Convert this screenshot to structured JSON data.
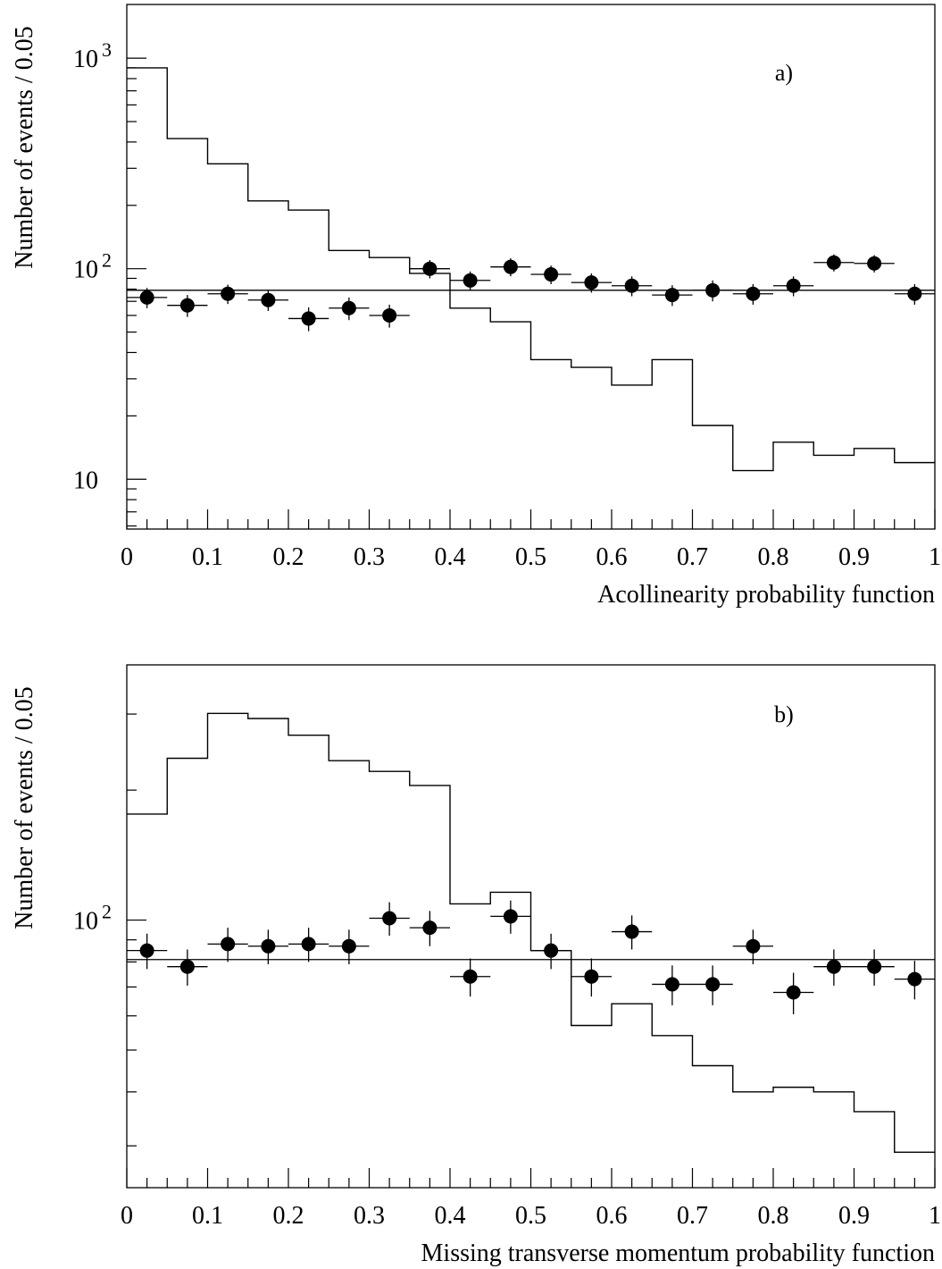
{
  "chart_data": [
    {
      "type": "histogram+scatter",
      "panel_label": "a)",
      "xlabel": "Acollinearity probability function",
      "ylabel": "Number of events / 0.05",
      "xlim": [
        0,
        1
      ],
      "ylim": [
        5.8,
        1800
      ],
      "yscale": "log",
      "x_tick_labels": [
        "0",
        "0.1",
        "0.2",
        "0.3",
        "0.4",
        "0.5",
        "0.6",
        "0.7",
        "0.8",
        "0.9",
        "1"
      ],
      "y_tick_labels": [
        {
          "value": 10,
          "base": "10",
          "exp": ""
        },
        {
          "value": 100,
          "base": "10",
          "exp": "2"
        },
        {
          "value": 1000,
          "base": "10",
          "exp": "3"
        }
      ],
      "bin_edges": [
        0,
        0.05,
        0.1,
        0.15,
        0.2,
        0.25,
        0.3,
        0.35,
        0.4,
        0.45,
        0.5,
        0.55,
        0.6,
        0.65,
        0.7,
        0.75,
        0.8,
        0.85,
        0.9,
        0.95,
        1.0
      ],
      "histogram": [
        900,
        415,
        315,
        210,
        190,
        122,
        113,
        95,
        65,
        56,
        37,
        34,
        28,
        37,
        18,
        11,
        15,
        13,
        14,
        12
      ],
      "points_x": [
        0.025,
        0.075,
        0.125,
        0.175,
        0.225,
        0.275,
        0.325,
        0.375,
        0.425,
        0.475,
        0.525,
        0.575,
        0.625,
        0.675,
        0.725,
        0.775,
        0.825,
        0.875,
        0.925,
        0.975
      ],
      "points_y": [
        73,
        67,
        76,
        71,
        58,
        65,
        60,
        100,
        88,
        102,
        94,
        86,
        83,
        75,
        79,
        76,
        83,
        107,
        106,
        76
      ],
      "points_err": [
        8,
        8,
        8,
        8,
        7.5,
        8,
        7.5,
        10,
        9,
        10,
        9.5,
        9,
        9,
        8.5,
        9,
        8.5,
        9,
        10,
        10,
        8.5
      ],
      "fit_line_y": 79
    },
    {
      "type": "histogram+scatter",
      "panel_label": "b)",
      "xlabel": "Missing transverse momentum probability function",
      "ylabel": "Number of events / 0.05",
      "xlim": [
        0,
        1
      ],
      "ylim": [
        24,
        390
      ],
      "yscale": "log",
      "x_tick_labels": [
        "0",
        "0.1",
        "0.2",
        "0.3",
        "0.4",
        "0.5",
        "0.6",
        "0.7",
        "0.8",
        "0.9",
        "1"
      ],
      "y_tick_labels": [
        {
          "value": 100,
          "base": "10",
          "exp": "2"
        }
      ],
      "bin_edges": [
        0,
        0.05,
        0.1,
        0.15,
        0.2,
        0.25,
        0.3,
        0.35,
        0.4,
        0.45,
        0.5,
        0.55,
        0.6,
        0.65,
        0.7,
        0.75,
        0.8,
        0.85,
        0.9,
        0.95,
        1.0
      ],
      "histogram": [
        176,
        237,
        301,
        293,
        268,
        234,
        221,
        205,
        109,
        116,
        85,
        57,
        64,
        54,
        46,
        40,
        41,
        40,
        36,
        29
      ],
      "points_x": [
        0.025,
        0.075,
        0.125,
        0.175,
        0.225,
        0.275,
        0.325,
        0.375,
        0.425,
        0.475,
        0.525,
        0.575,
        0.625,
        0.675,
        0.725,
        0.775,
        0.825,
        0.875,
        0.925,
        0.975
      ],
      "points_y": [
        85,
        78,
        88,
        87,
        88,
        87,
        101,
        96,
        74,
        102,
        85,
        74,
        94,
        71,
        71,
        87,
        68,
        78,
        78,
        73
      ],
      "points_err": [
        8,
        7.5,
        8,
        8,
        8,
        8,
        9,
        9,
        7.5,
        9,
        8,
        7.5,
        8.5,
        7.5,
        7.5,
        8,
        7.5,
        7.5,
        7.5,
        7.5
      ],
      "fit_line_y": 81
    }
  ]
}
